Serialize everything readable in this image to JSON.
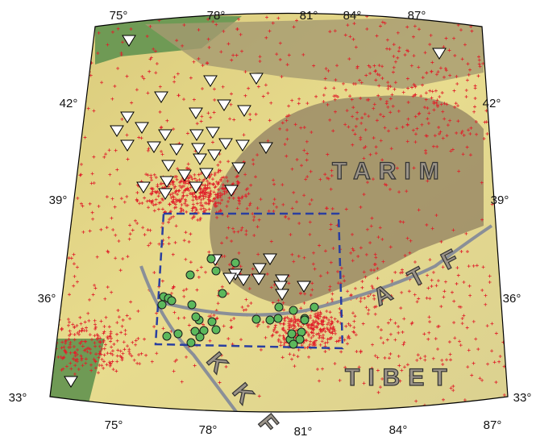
{
  "map": {
    "top_labels": [
      "75°",
      "78°",
      "81°",
      "84°",
      "87°"
    ],
    "bottom_labels": [
      "75°",
      "78°",
      "81°",
      "84°",
      "87°"
    ],
    "left_labels": [
      "42°",
      "39°",
      "36°",
      "33°"
    ],
    "right_labels": [
      "42°",
      "39°",
      "36°",
      "33°"
    ],
    "regions": {
      "tarim": "TARIM",
      "tibet": "TIBET",
      "atf": "A T F",
      "kkf": "K K F"
    }
  }
}
